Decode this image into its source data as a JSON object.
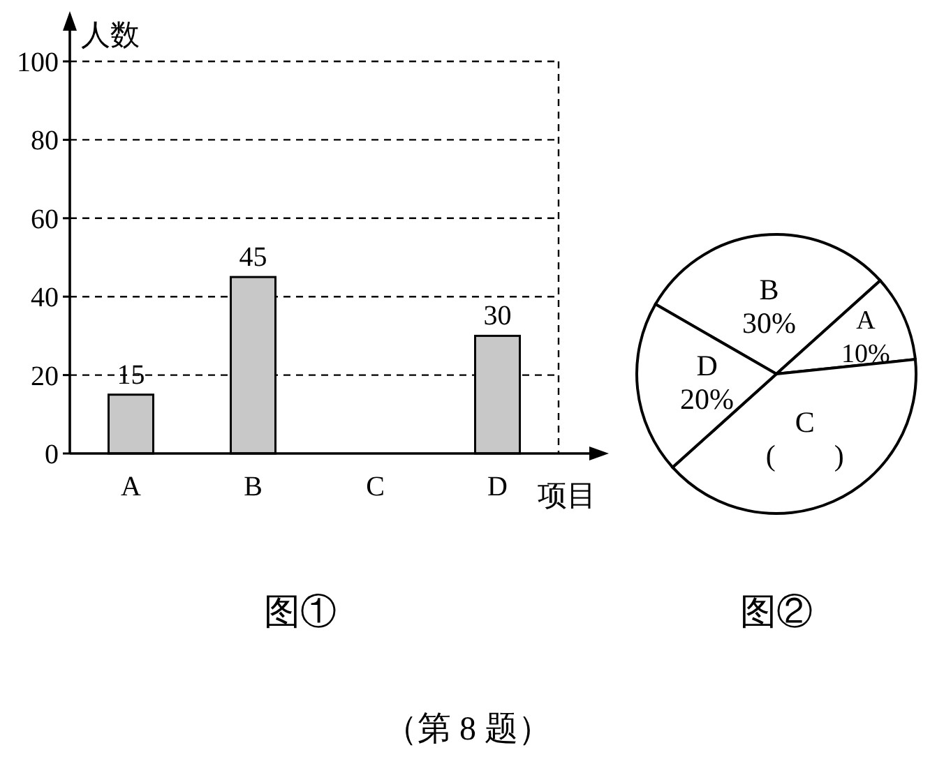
{
  "chart_data": [
    {
      "type": "bar",
      "title": "图①",
      "xlabel": "项目",
      "ylabel": "人数",
      "categories": [
        "A",
        "B",
        "C",
        "D"
      ],
      "values": [
        15,
        45,
        null,
        30
      ],
      "color": "#c8c8c8",
      "ylim": [
        0,
        100
      ],
      "yticks": [
        0,
        20,
        40,
        60,
        80,
        100
      ],
      "grid": "y",
      "data_labels": true,
      "annotations": [
        "（第 8 题）"
      ]
    },
    {
      "type": "pie",
      "title": "图②",
      "categories": [
        "B",
        "A",
        "C",
        "D"
      ],
      "values": [
        30,
        10,
        40,
        20
      ],
      "colors": [
        "#ffffff",
        "#ffffff",
        "#ffffff",
        "#ffffff"
      ],
      "value_labels": [
        "30%",
        "10%",
        "(　　)",
        "20%"
      ]
    }
  ]
}
